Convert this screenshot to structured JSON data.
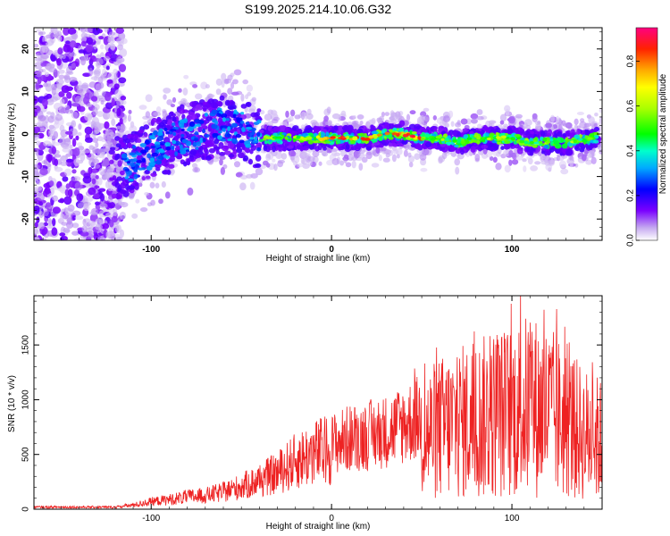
{
  "title": "S199.2025.214.10.06.G32",
  "chart_data": [
    {
      "type": "heatmap",
      "xlabel": "Height of straight line (km)",
      "ylabel": "Frequency (Hz)",
      "xlim": [
        -165,
        150
      ],
      "ylim": [
        -25,
        25
      ],
      "xticks": [
        -100,
        0,
        100
      ],
      "yticks": [
        -20,
        -10,
        0,
        10,
        20
      ],
      "colorbar": {
        "label": "Normalized spectral amplitude",
        "range": [
          0,
          0.95
        ],
        "ticks": [
          0.0,
          0.2,
          0.4,
          0.6,
          0.8
        ]
      },
      "ridge_frequency": [
        {
          "x": -120,
          "y": -8
        },
        {
          "x": -110,
          "y": -7
        },
        {
          "x": -100,
          "y": -4
        },
        {
          "x": -90,
          "y": -2
        },
        {
          "x": -80,
          "y": 0
        },
        {
          "x": -70,
          "y": 1
        },
        {
          "x": -60,
          "y": 2
        },
        {
          "x": -50,
          "y": 1
        },
        {
          "x": -40,
          "y": -1
        },
        {
          "x": -30,
          "y": -1
        },
        {
          "x": -20,
          "y": -1
        },
        {
          "x": -10,
          "y": -1
        },
        {
          "x": 0,
          "y": -1
        },
        {
          "x": 10,
          "y": -1
        },
        {
          "x": 20,
          "y": -1
        },
        {
          "x": 30,
          "y": 0
        },
        {
          "x": 40,
          "y": 0
        },
        {
          "x": 50,
          "y": -1
        },
        {
          "x": 60,
          "y": -1
        },
        {
          "x": 70,
          "y": -2
        },
        {
          "x": 80,
          "y": -1
        },
        {
          "x": 90,
          "y": -1
        },
        {
          "x": 100,
          "y": -1
        },
        {
          "x": 110,
          "y": -2
        },
        {
          "x": 120,
          "y": -2
        },
        {
          "x": 130,
          "y": -2
        },
        {
          "x": 145,
          "y": -1
        }
      ]
    },
    {
      "type": "line",
      "xlabel": "Height of straight line (km)",
      "ylabel": "SNR (10 * v/v)",
      "xlim": [
        -165,
        150
      ],
      "ylim": [
        0,
        1950
      ],
      "xticks": [
        -100,
        0,
        100
      ],
      "yticks": [
        0,
        500,
        1000,
        1500
      ],
      "color": "#ee2222",
      "envelope": [
        {
          "x": -165,
          "y": 30
        },
        {
          "x": -140,
          "y": 30
        },
        {
          "x": -120,
          "y": 30
        },
        {
          "x": -110,
          "y": 60
        },
        {
          "x": -100,
          "y": 110
        },
        {
          "x": -90,
          "y": 140
        },
        {
          "x": -80,
          "y": 180
        },
        {
          "x": -70,
          "y": 200
        },
        {
          "x": -60,
          "y": 250
        },
        {
          "x": -50,
          "y": 330
        },
        {
          "x": -40,
          "y": 420
        },
        {
          "x": -30,
          "y": 530
        },
        {
          "x": -20,
          "y": 700
        },
        {
          "x": -10,
          "y": 820
        },
        {
          "x": 0,
          "y": 880
        },
        {
          "x": 10,
          "y": 960
        },
        {
          "x": 20,
          "y": 1000
        },
        {
          "x": 30,
          "y": 1050
        },
        {
          "x": 40,
          "y": 1150
        },
        {
          "x": 50,
          "y": 1250
        },
        {
          "x": 60,
          "y": 1400
        },
        {
          "x": 70,
          "y": 1500
        },
        {
          "x": 80,
          "y": 1550
        },
        {
          "x": 90,
          "y": 1650
        },
        {
          "x": 100,
          "y": 1700
        },
        {
          "x": 110,
          "y": 1800
        },
        {
          "x": 120,
          "y": 1700
        },
        {
          "x": 130,
          "y": 1500
        },
        {
          "x": 140,
          "y": 1300
        },
        {
          "x": 150,
          "y": 1200
        }
      ]
    }
  ]
}
